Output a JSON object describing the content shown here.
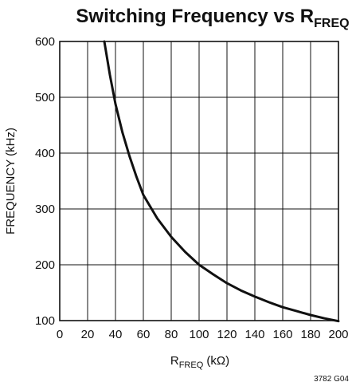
{
  "chart_data": {
    "type": "line",
    "title": "Switching Frequency vs R",
    "title_subscript": "FREQ",
    "xlabel": "R",
    "xlabel_subscript": "FREQ",
    "xlabel_unit": " (kΩ)",
    "ylabel": "FREQUENCY (kHz)",
    "xlim": [
      0,
      200
    ],
    "ylim": [
      100,
      600
    ],
    "x_ticks": [
      "0",
      "20",
      "40",
      "60",
      "80",
      "100",
      "120",
      "140",
      "160",
      "180",
      "200"
    ],
    "y_ticks": [
      "100",
      "200",
      "300",
      "400",
      "500",
      "600"
    ],
    "grid": true,
    "series": [
      {
        "x": [
          32,
          36,
          40,
          45,
          50,
          55,
          60,
          70,
          80,
          90,
          100,
          110,
          120,
          130,
          140,
          150,
          160,
          170,
          180,
          190,
          200
        ],
        "y": [
          600,
          540,
          488,
          437,
          395,
          358,
          325,
          283,
          250,
          223,
          200,
          183,
          167,
          154,
          143,
          133,
          124,
          117,
          110,
          104,
          99
        ]
      }
    ],
    "figure_code": "3782 G04"
  }
}
